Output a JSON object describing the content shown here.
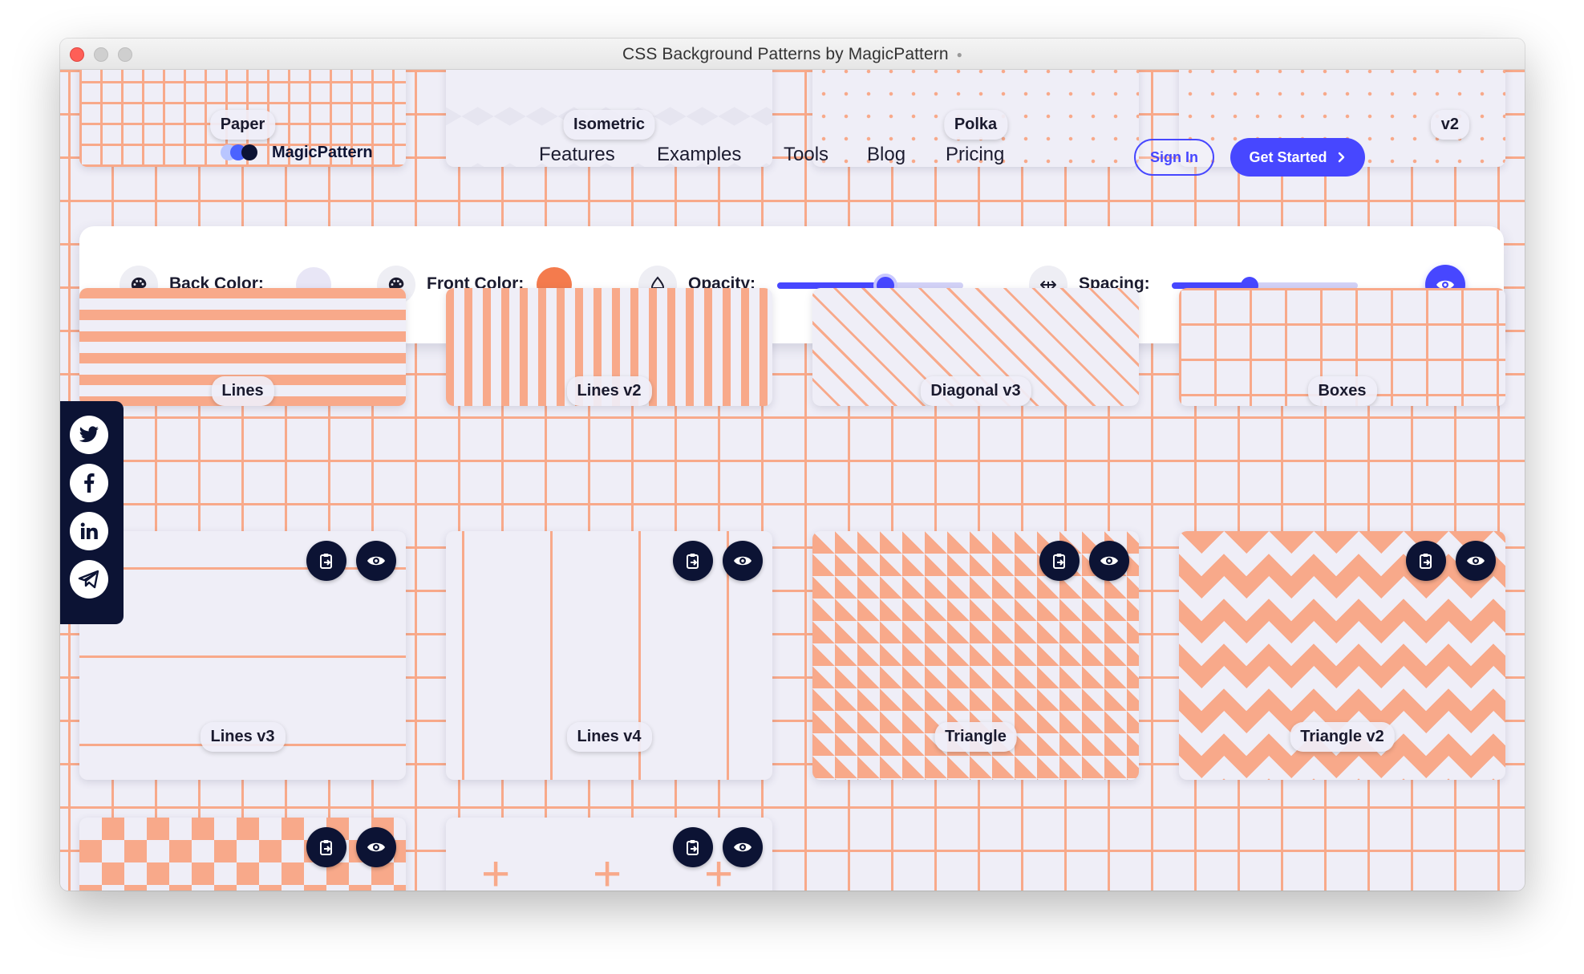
{
  "window": {
    "title": "CSS Background Patterns by MagicPattern"
  },
  "brand": {
    "name": "MagicPattern"
  },
  "nav": {
    "links": [
      "Features",
      "Examples",
      "Tools",
      "Blog",
      "Pricing"
    ],
    "sign_in": "Sign In",
    "get_started": "Get Started",
    "get_started_icon": "chevron-right-icon"
  },
  "controls": {
    "back_color": {
      "label": "Back Color:",
      "value": "#e8e6f6",
      "icon": "palette-icon"
    },
    "front_color": {
      "label": "Front Color:",
      "value": "#f47b4d",
      "icon": "palette-icon"
    },
    "opacity": {
      "label": "Opacity:",
      "value_percent": 58,
      "icon": "drop-icon"
    },
    "spacing": {
      "label": "Spacing:",
      "value_percent": 42,
      "icon": "horizontal-arrows-icon"
    },
    "preview_icon": "eye-icon"
  },
  "social": [
    "twitter-icon",
    "facebook-icon",
    "linkedin-icon",
    "telegram-icon"
  ],
  "patterns": {
    "row0": [
      "Paper",
      "Isometric",
      "Polka",
      "v2"
    ],
    "row1": [
      "Lines",
      "Lines v2",
      "Diagonal v3",
      "Boxes"
    ],
    "row2": [
      "Lines v3",
      "Lines v4",
      "Triangle",
      "Triangle v2"
    ]
  },
  "card_actions": {
    "copy_icon": "clipboard-icon",
    "preview_icon": "eye-icon"
  },
  "colors": {
    "accent": "#4747ff",
    "pattern_front": "#f8a98a",
    "pattern_back": "#efeef7",
    "dark": "#0c1334"
  }
}
